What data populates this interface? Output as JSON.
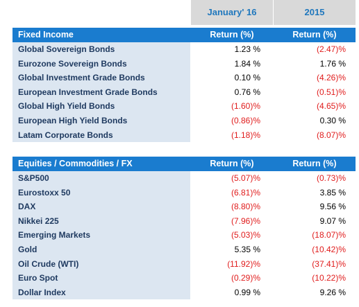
{
  "header": {
    "col1": "January' 16",
    "col2": "2015"
  },
  "sections": [
    {
      "title": "Fixed Income",
      "col1_label": "Return (%)",
      "col2_label": "Return (%)",
      "rows": [
        {
          "label": "Global Sovereign Bonds",
          "v1": "1.23 %",
          "v2": "(2.47)%",
          "n1": false,
          "n2": true
        },
        {
          "label": "Eurozone Sovereign Bonds",
          "v1": "1.84 %",
          "v2": "1.76 %",
          "n1": false,
          "n2": false
        },
        {
          "label": "Global Investment Grade Bonds",
          "v1": "0.10 %",
          "v2": "(4.26)%",
          "n1": false,
          "n2": true
        },
        {
          "label": "European Investment Grade Bonds",
          "v1": "0.76 %",
          "v2": "(0.51)%",
          "n1": false,
          "n2": true
        },
        {
          "label": "Global High Yield Bonds",
          "v1": "(1.60)%",
          "v2": "(4.65)%",
          "n1": true,
          "n2": true
        },
        {
          "label": "European High Yield Bonds",
          "v1": "(0.86)%",
          "v2": "0.30 %",
          "n1": true,
          "n2": false
        },
        {
          "label": "Latam Corporate Bonds",
          "v1": "(1.18)%",
          "v2": "(8.07)%",
          "n1": true,
          "n2": true
        }
      ]
    },
    {
      "title": "Equities / Commodities / FX",
      "col1_label": "Return (%)",
      "col2_label": "Return (%)",
      "rows": [
        {
          "label": "S&P500",
          "v1": "(5.07)%",
          "v2": "(0.73)%",
          "n1": true,
          "n2": true
        },
        {
          "label": "Eurostoxx 50",
          "v1": "(6.81)%",
          "v2": "3.85 %",
          "n1": true,
          "n2": false
        },
        {
          "label": "DAX",
          "v1": "(8.80)%",
          "v2": "9.56 %",
          "n1": true,
          "n2": false
        },
        {
          "label": "Nikkei 225",
          "v1": "(7.96)%",
          "v2": "9.07 %",
          "n1": true,
          "n2": false
        },
        {
          "label": "Emerging Markets",
          "v1": "(5.03)%",
          "v2": "(18.07)%",
          "n1": true,
          "n2": true
        },
        {
          "label": "Gold",
          "v1": "5.35 %",
          "v2": "(10.42)%",
          "n1": false,
          "n2": true
        },
        {
          "label": "Oil Crude (WTI)",
          "v1": "(11.92)%",
          "v2": "(37.41)%",
          "n1": true,
          "n2": true
        },
        {
          "label": "Euro Spot",
          "v1": "(0.29)%",
          "v2": "(10.22)%",
          "n1": true,
          "n2": true
        },
        {
          "label": "Dollar Index",
          "v1": "0.99 %",
          "v2": "9.26 %",
          "n1": false,
          "n2": false
        }
      ]
    }
  ],
  "colors": {
    "section_header_bg": "#1a7ccf",
    "label_bg": "#dce6f1",
    "negative": "#e01b1b",
    "period_header_bg": "#d9d9d9",
    "period_header_text": "#1f77bd"
  }
}
